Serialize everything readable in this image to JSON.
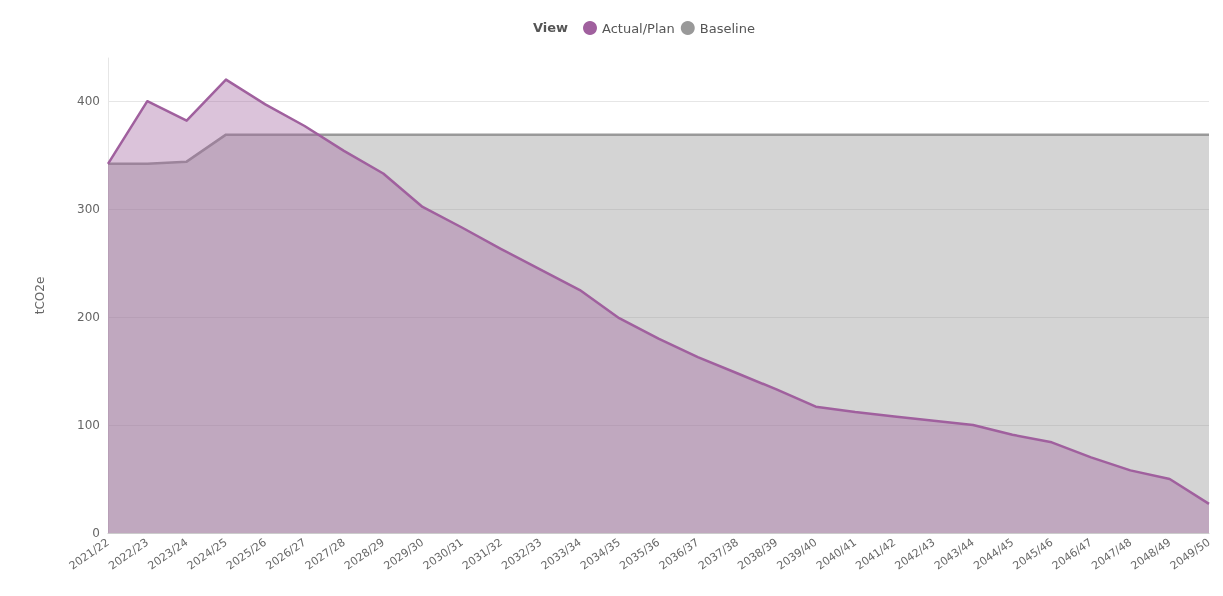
{
  "chart_data": {
    "type": "area",
    "ylabel": "tCO2e",
    "legend_title": "View",
    "legend": "top",
    "grid": "y",
    "marker": "none",
    "categories": [
      "2021/22",
      "2022/23",
      "2023/24",
      "2024/25",
      "2025/26",
      "2026/27",
      "2027/28",
      "2028/29",
      "2029/30",
      "2030/31",
      "2031/32",
      "2032/33",
      "2033/34",
      "2034/35",
      "2035/36",
      "2036/37",
      "2037/38",
      "2038/39",
      "2039/40",
      "2040/41",
      "2041/42",
      "2042/43",
      "2043/44",
      "2044/45",
      "2045/46",
      "2046/47",
      "2047/48",
      "2048/49",
      "2049/50"
    ],
    "ylim": [
      0,
      440
    ],
    "yticks": [
      0,
      100,
      200,
      300,
      400
    ],
    "series": [
      {
        "name": "Baseline",
        "color": "#999999",
        "values": [
          342,
          342,
          344,
          369,
          369,
          369,
          369,
          369,
          369,
          369,
          369,
          369,
          369,
          369,
          369,
          369,
          369,
          369,
          369,
          369,
          369,
          369,
          369,
          369,
          369,
          369,
          369,
          369,
          369
        ]
      },
      {
        "name": "Actual/Plan",
        "color": "#a0609e",
        "values": [
          342,
          400,
          382,
          420,
          397,
          377,
          354,
          333,
          302,
          283,
          263,
          244,
          225,
          199,
          180,
          163,
          148,
          133,
          117,
          112,
          108,
          104,
          100,
          91,
          84,
          70,
          58,
          50,
          27
        ]
      }
    ]
  }
}
